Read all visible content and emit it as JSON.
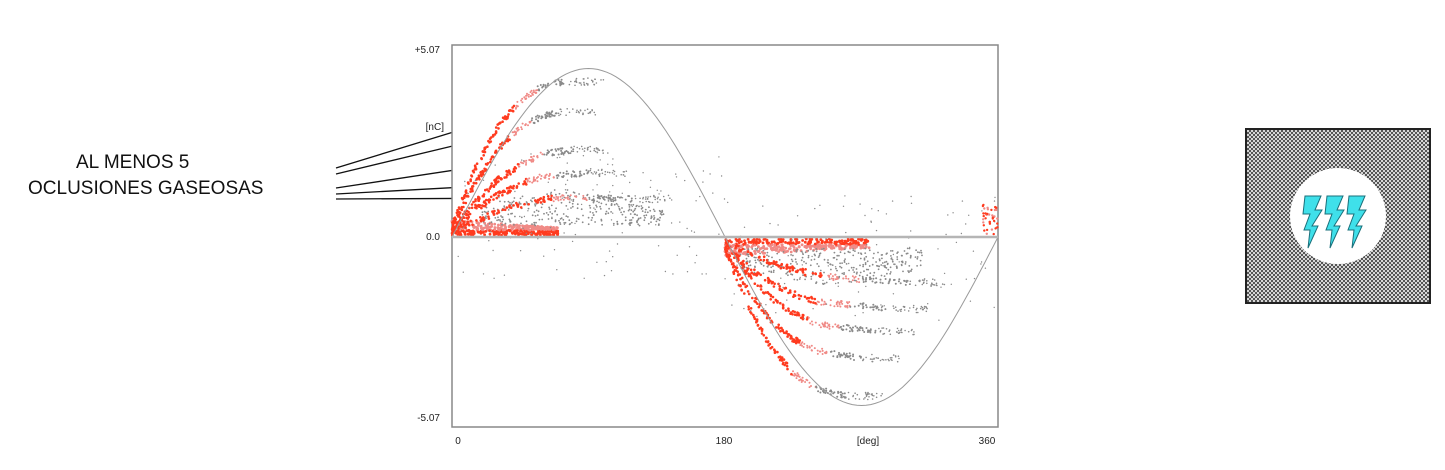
{
  "annotation": {
    "line1": "AL MENOS 5",
    "line2": "OCLUSIONES GASEOSAS"
  },
  "chart_data": {
    "type": "scatter",
    "title": "",
    "xlabel": "[deg]",
    "ylabel": "[nC]",
    "xlim": [
      0,
      360
    ],
    "ylim": [
      -5.07,
      5.07
    ],
    "xticks": [
      "0",
      "180",
      "[deg]",
      "360"
    ],
    "yticks": [
      "+5.07",
      "[nC]",
      "0.0",
      "-5.07"
    ],
    "grid": false,
    "legend": "none",
    "series": [
      {
        "name": "",
        "polarity": "positive",
        "x": [
          0,
          15,
          30,
          45,
          60,
          75
        ],
        "y": [
          0.3,
          1.8,
          2.9,
          3.6,
          4.0,
          4.1
        ]
      },
      {
        "name": "",
        "polarity": "positive",
        "x": [
          0,
          15,
          30,
          45,
          60,
          70
        ],
        "y": [
          0.3,
          1.4,
          2.3,
          2.9,
          3.2,
          3.3
        ]
      },
      {
        "name": "",
        "polarity": "positive",
        "x": [
          0,
          15,
          30,
          45,
          60,
          80
        ],
        "y": [
          0.2,
          0.9,
          1.5,
          1.9,
          2.2,
          2.3
        ]
      },
      {
        "name": "",
        "polarity": "positive",
        "x": [
          0,
          15,
          30,
          45,
          60,
          90
        ],
        "y": [
          0.2,
          0.7,
          1.1,
          1.4,
          1.6,
          1.7
        ]
      },
      {
        "name": "",
        "polarity": "positive",
        "x": [
          0,
          20,
          40,
          60,
          80,
          120
        ],
        "y": [
          0.15,
          0.5,
          0.8,
          1.0,
          1.05,
          1.0
        ]
      },
      {
        "name": "",
        "polarity": "negative",
        "x": [
          180,
          195,
          210,
          225,
          240,
          260
        ],
        "y": [
          -0.3,
          -1.8,
          -2.9,
          -3.6,
          -4.0,
          -4.2
        ]
      },
      {
        "name": "",
        "polarity": "negative",
        "x": [
          180,
          195,
          210,
          225,
          240,
          270
        ],
        "y": [
          -0.3,
          -1.4,
          -2.2,
          -2.7,
          -3.0,
          -3.2
        ]
      },
      {
        "name": "",
        "polarity": "negative",
        "x": [
          180,
          195,
          210,
          225,
          240,
          280
        ],
        "y": [
          -0.2,
          -1.0,
          -1.6,
          -2.0,
          -2.3,
          -2.5
        ]
      },
      {
        "name": "",
        "polarity": "negative",
        "x": [
          180,
          195,
          210,
          225,
          240,
          290
        ],
        "y": [
          -0.2,
          -0.8,
          -1.2,
          -1.5,
          -1.7,
          -1.9
        ]
      },
      {
        "name": "",
        "polarity": "negative",
        "x": [
          180,
          200,
          220,
          240,
          260,
          300
        ],
        "y": [
          -0.15,
          -0.5,
          -0.8,
          -1.0,
          -1.1,
          -1.2
        ]
      }
    ],
    "reference_sine": {
      "amplitude": 4.45
    },
    "colors": {
      "dense": "#ff3b1f",
      "mid": "#f08a86",
      "sparse": "#8a8a8a",
      "frame": "#888888"
    }
  },
  "icon": {
    "name": "discharge-symbol",
    "shape_color": "#3fe0ea"
  }
}
